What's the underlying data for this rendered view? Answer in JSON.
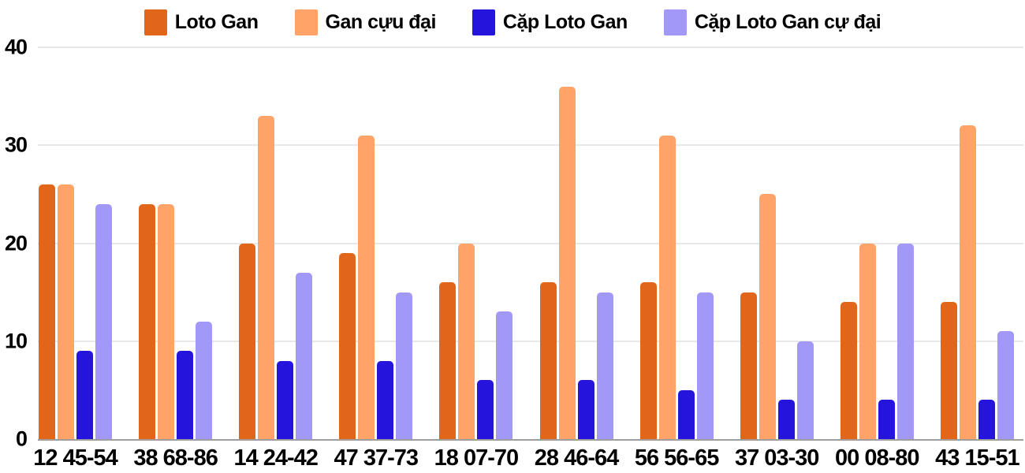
{
  "chart_data": {
    "type": "bar",
    "title": "",
    "xlabel": "",
    "ylabel": "",
    "categories": [
      "12 45-54",
      "38 68-86",
      "14 24-42",
      "47 37-73",
      "18 07-70",
      "28 46-64",
      "56 56-65",
      "37 03-30",
      "00 08-80",
      "43 15-51"
    ],
    "series": [
      {
        "name": "Loto Gan",
        "color": "#e2661a",
        "values": [
          26,
          24,
          20,
          19,
          16,
          16,
          16,
          15,
          14,
          14
        ]
      },
      {
        "name": "Gan cựu đại",
        "color": "#ffa368",
        "values": [
          26,
          24,
          33,
          31,
          20,
          36,
          31,
          25,
          20,
          32
        ]
      },
      {
        "name": "Cặp Loto Gan",
        "color": "#2414dc",
        "values": [
          9,
          9,
          8,
          8,
          6,
          6,
          5,
          4,
          4,
          4
        ]
      },
      {
        "name": "Cặp Loto Gan cự đại",
        "color": "#a198f7",
        "values": [
          24,
          12,
          17,
          15,
          13,
          15,
          15,
          10,
          20,
          11
        ]
      }
    ],
    "ylim": [
      0,
      40
    ],
    "yticks": [
      0,
      10,
      20,
      30,
      40
    ],
    "grid": true,
    "legend_position": "top",
    "colors": {
      "gridline": "#e8e8e8",
      "baseline": "#9e9e9e",
      "text": "#000000"
    }
  }
}
